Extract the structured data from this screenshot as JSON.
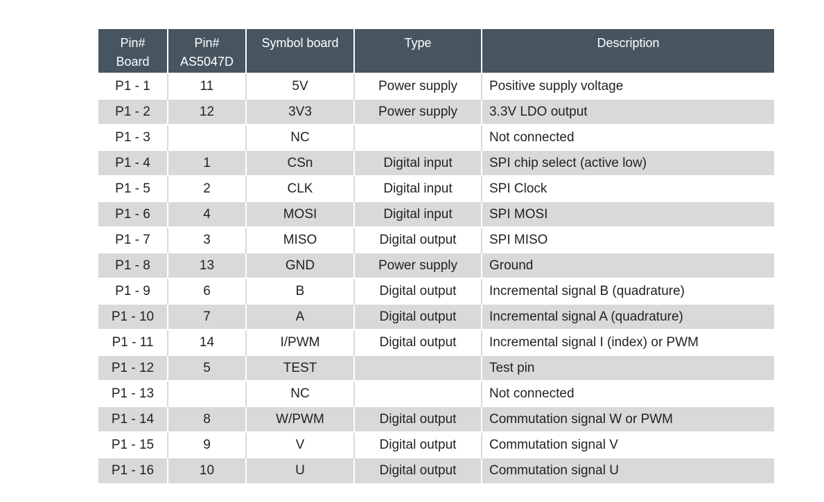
{
  "table": {
    "headers": [
      [
        "Pin#",
        "Board"
      ],
      [
        "Pin#",
        "AS5047D"
      ],
      [
        "Symbol board"
      ],
      [
        "Type"
      ],
      [
        "Description"
      ]
    ],
    "rows": [
      [
        "P1 - 1",
        "11",
        "5V",
        "Power supply",
        "Positive supply voltage"
      ],
      [
        "P1 - 2",
        "12",
        "3V3",
        "Power supply",
        "3.3V LDO output"
      ],
      [
        "P1 - 3",
        "",
        "NC",
        "",
        "Not connected"
      ],
      [
        "P1 - 4",
        "1",
        "CSn",
        "Digital input",
        "SPI chip select (active low)"
      ],
      [
        "P1 - 5",
        "2",
        "CLK",
        "Digital input",
        "SPI Clock"
      ],
      [
        "P1 - 6",
        "4",
        "MOSI",
        "Digital input",
        "SPI MOSI"
      ],
      [
        "P1 - 7",
        "3",
        "MISO",
        "Digital output",
        "SPI MISO"
      ],
      [
        "P1 - 8",
        "13",
        "GND",
        "Power supply",
        "Ground"
      ],
      [
        "P1 - 9",
        "6",
        "B",
        "Digital output",
        "Incremental signal B (quadrature)"
      ],
      [
        "P1 - 10",
        "7",
        "A",
        "Digital output",
        "Incremental signal A (quadrature)"
      ],
      [
        "P1 - 11",
        "14",
        "I/PWM",
        "Digital output",
        "Incremental signal I (index) or PWM"
      ],
      [
        "P1 - 12",
        "5",
        "TEST",
        "",
        "Test pin"
      ],
      [
        "P1 - 13",
        "",
        "NC",
        "",
        "Not connected"
      ],
      [
        "P1 - 14",
        "8",
        "W/PWM",
        "Digital output",
        "Commutation signal W or PWM"
      ],
      [
        "P1 - 15",
        "9",
        "V",
        "Digital output",
        "Commutation signal V"
      ],
      [
        "P1 - 16",
        "10",
        "U",
        "Digital output",
        "Commutation signal U"
      ]
    ]
  },
  "colors": {
    "header_bg": "#465560",
    "header_text": "#ffffff",
    "stripe_bg": "#d9d9d9",
    "text": "#222222"
  }
}
